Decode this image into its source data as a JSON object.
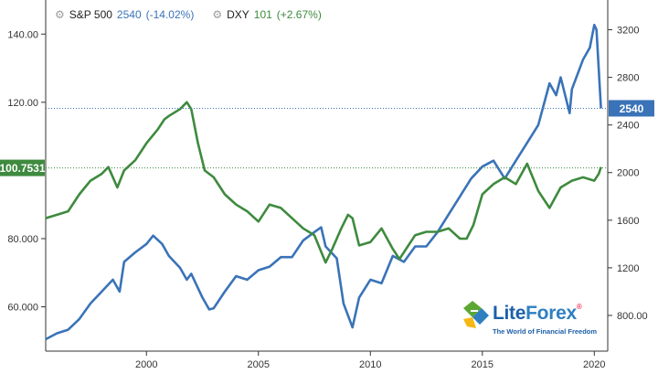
{
  "legend": {
    "sp_name": "S&P 500",
    "sp_value": "2540",
    "sp_change": "(-14.02%)",
    "dxy_name": "DXY",
    "dxy_value": "101",
    "dxy_change": "(+2.67%)"
  },
  "badges": {
    "left": "100.7531",
    "right": "2540"
  },
  "logo": {
    "name_a": "Lite",
    "name_b": "Forex",
    "registered": "®",
    "tagline": "The World of Financial Freedom"
  },
  "colors": {
    "sp": "#3a73b8",
    "dxy": "#3e8a3e",
    "grid": "#d6d6d6"
  },
  "chart_data": {
    "type": "line",
    "x_ticks": [
      "2000",
      "2005",
      "2010",
      "2015",
      "2020"
    ],
    "left_axis_ticks": [
      "140.00",
      "120.00",
      "100.7531",
      "80.000",
      "60.000"
    ],
    "right_axis_ticks": [
      "3200",
      "2800",
      "2400",
      "2000",
      "1600",
      "1200",
      "800.00"
    ],
    "xlim": [
      1995.5,
      2020.6
    ],
    "ylim_left": [
      47,
      150
    ],
    "ylim_right": [
      500,
      3450
    ],
    "series": [
      {
        "name": "S&P 500",
        "axis": "right",
        "x": [
          1995.5,
          1996.0,
          1996.5,
          1997.0,
          1997.5,
          1998.0,
          1998.5,
          1998.8,
          1999.0,
          1999.5,
          2000.0,
          2000.3,
          2000.7,
          2001.0,
          2001.5,
          2001.8,
          2002.0,
          2002.5,
          2002.8,
          2003.0,
          2003.5,
          2004.0,
          2004.5,
          2005.0,
          2005.5,
          2006.0,
          2006.5,
          2007.0,
          2007.5,
          2007.8,
          2008.0,
          2008.5,
          2008.8,
          2009.0,
          2009.2,
          2009.5,
          2010.0,
          2010.5,
          2011.0,
          2011.5,
          2012.0,
          2012.5,
          2013.0,
          2013.5,
          2014.0,
          2014.5,
          2015.0,
          2015.5,
          2016.0,
          2016.5,
          2017.0,
          2017.5,
          2018.0,
          2018.3,
          2018.5,
          2018.9,
          2019.0,
          2019.5,
          2019.8,
          2020.0,
          2020.1,
          2020.3
        ],
        "values": [
          600,
          650,
          680,
          770,
          900,
          1000,
          1100,
          1000,
          1250,
          1330,
          1400,
          1470,
          1400,
          1300,
          1200,
          1100,
          1150,
          950,
          850,
          860,
          1000,
          1130,
          1100,
          1180,
          1210,
          1290,
          1290,
          1430,
          1500,
          1540,
          1380,
          1280,
          900,
          800,
          700,
          950,
          1100,
          1070,
          1300,
          1250,
          1380,
          1380,
          1500,
          1650,
          1800,
          1950,
          2050,
          2100,
          1950,
          2100,
          2250,
          2400,
          2750,
          2650,
          2800,
          2500,
          2700,
          2950,
          3050,
          3240,
          3200,
          2540
        ]
      },
      {
        "name": "DXY",
        "axis": "left",
        "x": [
          1995.5,
          1996.0,
          1996.5,
          1997.0,
          1997.5,
          1998.0,
          1998.3,
          1998.7,
          1999.0,
          1999.5,
          2000.0,
          2000.5,
          2000.8,
          2001.0,
          2001.5,
          2001.8,
          2002.0,
          2002.3,
          2002.6,
          2003.0,
          2003.5,
          2004.0,
          2004.5,
          2005.0,
          2005.5,
          2006.0,
          2006.5,
          2007.0,
          2007.5,
          2008.0,
          2008.3,
          2008.7,
          2009.0,
          2009.2,
          2009.5,
          2010.0,
          2010.5,
          2011.0,
          2011.3,
          2011.7,
          2012.0,
          2012.5,
          2013.0,
          2013.5,
          2014.0,
          2014.3,
          2014.6,
          2015.0,
          2015.5,
          2016.0,
          2016.5,
          2017.0,
          2017.5,
          2018.0,
          2018.5,
          2019.0,
          2019.5,
          2020.0,
          2020.2,
          2020.3
        ],
        "values": [
          86,
          87,
          88,
          93,
          97,
          99,
          101,
          95,
          100,
          103,
          108,
          112,
          115,
          116,
          118,
          120,
          118,
          108,
          100,
          98,
          93,
          90,
          88,
          85,
          90,
          89,
          86,
          83,
          81,
          73,
          77,
          83,
          87,
          86,
          78,
          79,
          83,
          77,
          74,
          78,
          81,
          82,
          82,
          83,
          80,
          80,
          84,
          93,
          96,
          98,
          96,
          102,
          94,
          89,
          95,
          97,
          98,
          97,
          99,
          101
        ]
      }
    ]
  }
}
